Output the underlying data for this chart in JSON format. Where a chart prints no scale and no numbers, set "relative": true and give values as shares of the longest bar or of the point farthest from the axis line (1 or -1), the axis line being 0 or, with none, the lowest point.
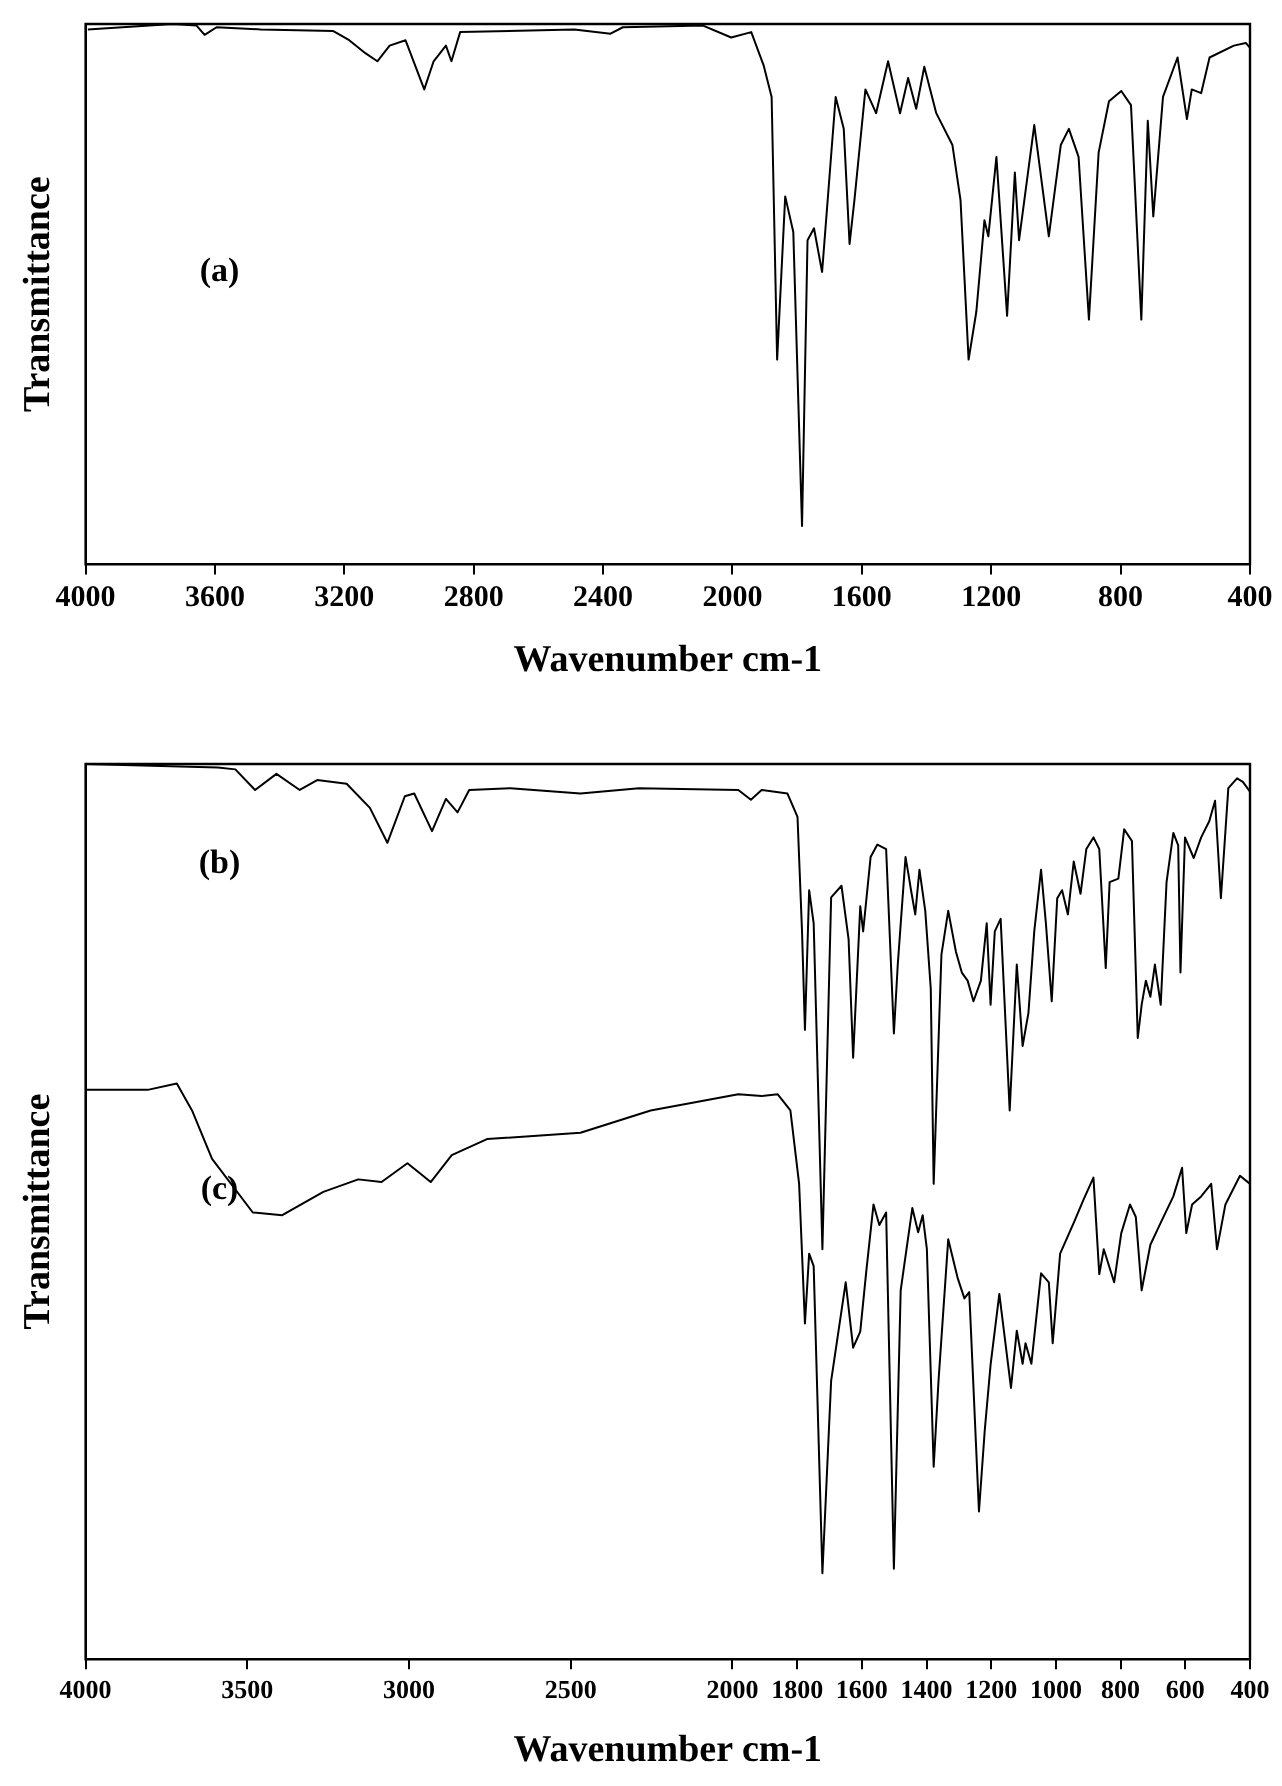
{
  "chart_data": [
    {
      "type": "line",
      "xlabel": "Wavenumber cm-1",
      "ylabel": "Transmittance",
      "xlim": [
        4000,
        400
      ],
      "xticks": [
        4000,
        3600,
        3200,
        2800,
        2400,
        2000,
        1600,
        1200,
        800,
        400
      ],
      "relative": true,
      "tick_labels": "x",
      "series": [
        {
          "name": "(a)",
          "color": "#000000",
          "x": [
            3993,
            3731,
            3657,
            3632,
            3595,
            3458,
            3234,
            3185,
            3135,
            3098,
            3060,
            3011,
            2953,
            2924,
            2886,
            2869,
            2842,
            2489,
            2377,
            2339,
            2091,
            2004,
            1942,
            1904,
            1879,
            1862,
            1837,
            1812,
            1785,
            1768,
            1748,
            1723,
            1681,
            1656,
            1638,
            1623,
            1589,
            1556,
            1519,
            1482,
            1457,
            1432,
            1407,
            1370,
            1320,
            1295,
            1270,
            1246,
            1221,
            1209,
            1184,
            1151,
            1127,
            1114,
            1067,
            1022,
            985,
            960,
            930,
            898,
            868,
            836,
            798,
            768,
            736,
            716,
            699,
            669,
            624,
            595,
            580,
            551,
            525,
            450,
            413,
            400
          ],
          "values": [
            0.99,
            1.0,
            0.997,
            0.98,
            0.994,
            0.99,
            0.987,
            0.97,
            0.946,
            0.931,
            0.96,
            0.97,
            0.879,
            0.931,
            0.96,
            0.931,
            0.985,
            0.99,
            0.982,
            0.994,
            0.997,
            0.975,
            0.985,
            0.924,
            0.865,
            0.379,
            0.681,
            0.615,
            0.071,
            0.6,
            0.622,
            0.541,
            0.865,
            0.806,
            0.593,
            0.674,
            0.879,
            0.835,
            0.931,
            0.835,
            0.9,
            0.843,
            0.921,
            0.835,
            0.776,
            0.674,
            0.379,
            0.468,
            0.637,
            0.607,
            0.754,
            0.46,
            0.725,
            0.6,
            0.813,
            0.607,
            0.776,
            0.806,
            0.754,
            0.453,
            0.762,
            0.857,
            0.876,
            0.85,
            0.453,
            0.821,
            0.644,
            0.865,
            0.938,
            0.824,
            0.879,
            0.872,
            0.938,
            0.96,
            0.965,
            0.956
          ]
        }
      ]
    },
    {
      "type": "line",
      "xlabel": "Wavenumber cm-1",
      "ylabel": "Transmittance",
      "xlim": [
        4000,
        400
      ],
      "xticks": [
        4000,
        3500,
        3000,
        2500,
        2000,
        1800,
        1600,
        1400,
        1200,
        1000,
        800,
        600,
        400
      ],
      "relative": true,
      "tick_labels": "x",
      "series": [
        {
          "name": "(b)",
          "color": "#000000",
          "x": [
            4000,
            3591,
            3537,
            3476,
            3410,
            3338,
            3284,
            3193,
            3121,
            3067,
            3013,
            2984,
            2929,
            2886,
            2850,
            2814,
            2687,
            2470,
            2289,
            1982,
            1943,
            1910,
            1830,
            1799,
            1785,
            1776,
            1763,
            1749,
            1722,
            1695,
            1663,
            1641,
            1627,
            1605,
            1596,
            1573,
            1552,
            1525,
            1501,
            1489,
            1465,
            1456,
            1448,
            1435,
            1422,
            1404,
            1387,
            1378,
            1354,
            1333,
            1309,
            1291,
            1273,
            1255,
            1232,
            1214,
            1202,
            1189,
            1171,
            1143,
            1121,
            1103,
            1085,
            1067,
            1046,
            1031,
            1013,
            996,
            981,
            963,
            945,
            924,
            906,
            884,
            866,
            846,
            834,
            807,
            789,
            765,
            747,
            735,
            722,
            708,
            694,
            676,
            658,
            637,
            622,
            615,
            601,
            574,
            551,
            526,
            508,
            490,
            467,
            440,
            422,
            400
          ],
          "values": [
            1.0,
            0.996,
            0.994,
            0.971,
            0.989,
            0.971,
            0.982,
            0.978,
            0.951,
            0.912,
            0.964,
            0.967,
            0.925,
            0.961,
            0.946,
            0.971,
            0.973,
            0.967,
            0.973,
            0.971,
            0.96,
            0.971,
            0.967,
            0.941,
            0.813,
            0.703,
            0.859,
            0.822,
            0.458,
            0.851,
            0.864,
            0.804,
            0.672,
            0.841,
            0.813,
            0.896,
            0.91,
            0.905,
            0.699,
            0.776,
            0.896,
            0.877,
            0.859,
            0.832,
            0.882,
            0.836,
            0.749,
            0.531,
            0.787,
            0.836,
            0.79,
            0.767,
            0.758,
            0.735,
            0.758,
            0.822,
            0.731,
            0.813,
            0.827,
            0.613,
            0.776,
            0.685,
            0.722,
            0.813,
            0.882,
            0.822,
            0.735,
            0.85,
            0.859,
            0.832,
            0.891,
            0.855,
            0.905,
            0.918,
            0.905,
            0.772,
            0.868,
            0.872,
            0.927,
            0.914,
            0.694,
            0.731,
            0.758,
            0.74,
            0.776,
            0.731,
            0.868,
            0.923,
            0.909,
            0.767,
            0.918,
            0.895,
            0.918,
            0.936,
            0.959,
            0.85,
            0.973,
            0.984,
            0.98,
            0.969
          ]
        },
        {
          "name": "(c)",
          "color": "#000000",
          "x": [
            4000,
            3808,
            3718,
            3671,
            3609,
            3483,
            3392,
            3265,
            3157,
            3085,
            3005,
            2933,
            2868,
            2759,
            2470,
            2253,
            1982,
            1910,
            1860,
            1821,
            1794,
            1776,
            1763,
            1749,
            1722,
            1695,
            1650,
            1627,
            1605,
            1587,
            1564,
            1546,
            1525,
            1501,
            1480,
            1444,
            1426,
            1412,
            1399,
            1378,
            1363,
            1333,
            1304,
            1283,
            1268,
            1238,
            1220,
            1202,
            1175,
            1139,
            1121,
            1103,
            1094,
            1076,
            1046,
            1022,
            1010,
            987,
            942,
            915,
            884,
            866,
            852,
            820,
            798,
            771,
            753,
            735,
            708,
            673,
            637,
            610,
            597,
            579,
            551,
            520,
            502,
            476,
            431,
            400
          ],
          "values": [
            0.636,
            0.636,
            0.643,
            0.613,
            0.559,
            0.499,
            0.496,
            0.522,
            0.536,
            0.533,
            0.554,
            0.533,
            0.563,
            0.581,
            0.588,
            0.613,
            0.631,
            0.629,
            0.631,
            0.613,
            0.531,
            0.375,
            0.453,
            0.439,
            0.096,
            0.311,
            0.421,
            0.348,
            0.366,
            0.431,
            0.508,
            0.485,
            0.499,
            0.101,
            0.412,
            0.504,
            0.477,
            0.496,
            0.458,
            0.215,
            0.311,
            0.469,
            0.426,
            0.403,
            0.41,
            0.165,
            0.256,
            0.329,
            0.408,
            0.303,
            0.367,
            0.33,
            0.353,
            0.33,
            0.431,
            0.421,
            0.353,
            0.453,
            0.49,
            0.513,
            0.538,
            0.43,
            0.458,
            0.421,
            0.476,
            0.508,
            0.494,
            0.412,
            0.463,
            0.49,
            0.517,
            0.549,
            0.476,
            0.508,
            0.517,
            0.531,
            0.458,
            0.508,
            0.54,
            0.531
          ]
        }
      ]
    }
  ]
}
